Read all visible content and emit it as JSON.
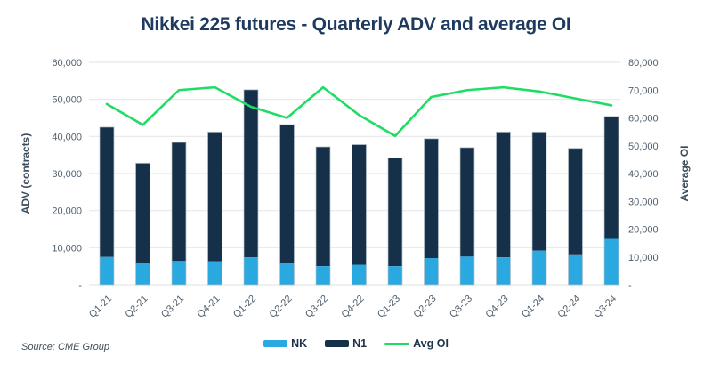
{
  "source": "Source: CME Group",
  "chart_data": {
    "type": "bar",
    "subtype": "stacked-bars-with-line",
    "title": "Nikkei 225 futures - Quarterly ADV and average OI",
    "categories": [
      "Q1-21",
      "Q2-21",
      "Q3-21",
      "Q4-21",
      "Q1-22",
      "Q2-22",
      "Q3-22",
      "Q4-22",
      "Q1-23",
      "Q2-23",
      "Q3-23",
      "Q4-23",
      "Q1-24",
      "Q2-24",
      "Q3-24"
    ],
    "series": [
      {
        "name": "NK",
        "type": "bar",
        "stack": true,
        "axis": "left",
        "color": "#2aa9e0",
        "values": [
          7500,
          5800,
          6400,
          6300,
          7400,
          5700,
          5000,
          5400,
          5000,
          7200,
          7600,
          7400,
          9200,
          8200,
          12600
        ]
      },
      {
        "name": "N1",
        "type": "bar",
        "stack": true,
        "axis": "left",
        "color": "#16304a",
        "values": [
          35000,
          27000,
          32000,
          34900,
          45200,
          37500,
          32200,
          32400,
          29200,
          32200,
          29400,
          33800,
          32000,
          28600,
          32800
        ]
      },
      {
        "name": "Avg OI",
        "type": "line",
        "stack": false,
        "axis": "right",
        "color": "#1fdd64",
        "values": [
          65000,
          57500,
          70000,
          71000,
          64000,
          60000,
          71000,
          61000,
          53500,
          67500,
          70000,
          71000,
          69500,
          67000,
          64500
        ]
      }
    ],
    "left_axis": {
      "label": "ADV (contracts)",
      "min": 0,
      "max": 60000,
      "ticks": [
        "60,000",
        "50,000",
        "40,000",
        "30,000",
        "20,000",
        "10,000",
        "-"
      ]
    },
    "right_axis": {
      "label": "Average OI",
      "min": 0,
      "max": 80000,
      "ticks": [
        "80,000",
        "70,000",
        "60,000",
        "50,000",
        "40,000",
        "30,000",
        "20,000",
        "10,000",
        "-"
      ]
    },
    "grid": true,
    "legend_position": "bottom",
    "style": {
      "title_color": "#1e3a5f",
      "tick_color": "#51606e",
      "grid_color": "#e4e7ea",
      "bar_outline": "#b7c3cc"
    }
  }
}
